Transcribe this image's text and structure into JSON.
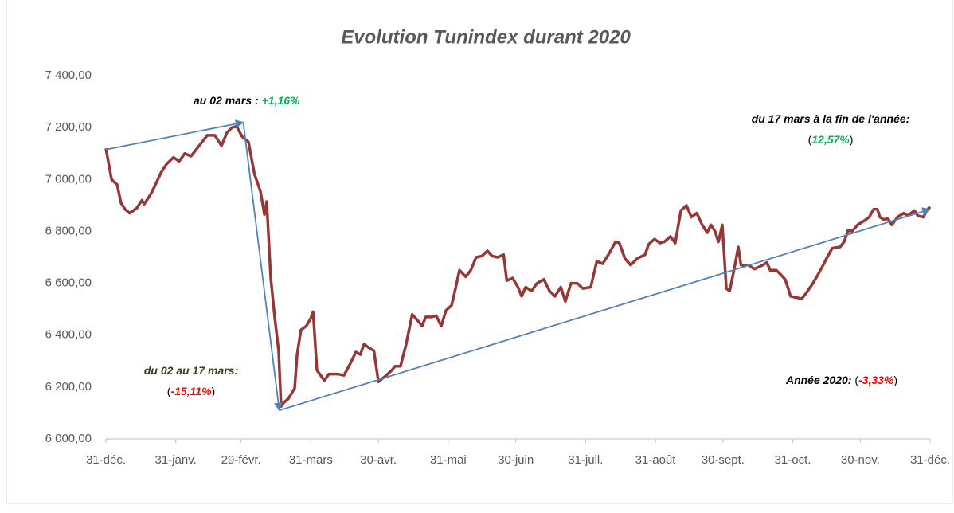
{
  "chart_data": {
    "type": "line",
    "title": "Evolution Tunindex durant 2020",
    "xlim": [
      0,
      366
    ],
    "xticks": [
      {
        "value": 0,
        "label": "31-déc."
      },
      {
        "value": 31,
        "label": "31-janv."
      },
      {
        "value": 60,
        "label": "29-févr."
      },
      {
        "value": 91,
        "label": "31-mars"
      },
      {
        "value": 121,
        "label": "30-avr."
      },
      {
        "value": 152,
        "label": "31-mai"
      },
      {
        "value": 182,
        "label": "30-juin"
      },
      {
        "value": 213,
        "label": "31-juil."
      },
      {
        "value": 244,
        "label": "31-août"
      },
      {
        "value": 274,
        "label": "30-sept."
      },
      {
        "value": 305,
        "label": "31-oct."
      },
      {
        "value": 335,
        "label": "30-nov."
      },
      {
        "value": 366,
        "label": "31-déc."
      }
    ],
    "ylim": [
      6000,
      7400
    ],
    "yticks": [
      {
        "value": 6000,
        "label": "6 000,00"
      },
      {
        "value": 6200,
        "label": "6 200,00"
      },
      {
        "value": 6400,
        "label": "6 400,00"
      },
      {
        "value": 6600,
        "label": "6 600,00"
      },
      {
        "value": 6800,
        "label": "6 800,00"
      },
      {
        "value": 7000,
        "label": "7 000,00"
      },
      {
        "value": 7200,
        "label": "7 200,00"
      },
      {
        "value": 7400,
        "label": "7 400,00"
      }
    ],
    "grid": false,
    "series": [
      {
        "color": "#953735",
        "x": [
          0,
          2.5,
          5,
          6.7,
          8.5,
          10.6,
          13.8,
          16,
          17,
          20,
          22,
          24.4,
          27,
          30,
          32.5,
          35,
          37.8,
          41.4,
          45,
          48.4,
          51.3,
          53.7,
          56,
          58,
          60.5,
          63.3,
          66,
          68.6,
          70.4,
          71.4,
          73.2,
          75,
          76.7,
          77.8,
          79,
          81,
          83.8,
          84.9,
          86.6,
          89,
          91,
          92,
          93.7,
          97,
          99,
          103,
          105.7,
          108.5,
          111,
          113,
          114.6,
          117,
          119,
          121,
          124.5,
          127,
          128.4,
          130.8,
          133.3,
          136,
          138.6,
          140.4,
          142,
          144.6,
          146.7,
          148.9,
          151,
          153.5,
          155,
          157,
          159.8,
          162,
          164.4,
          167,
          169.4,
          171.5,
          174,
          176.6,
          178,
          180.6,
          183,
          184.6,
          186.4,
          189,
          191.4,
          194.5,
          197,
          199.4,
          202,
          204,
          206.5,
          209.3,
          211.8,
          215.3,
          218,
          220.6,
          223.5,
          226.3,
          228,
          230.5,
          233,
          235.9,
          239.4,
          241,
          243.6,
          246,
          248,
          250.7,
          252.8,
          255.3,
          257.8,
          260,
          262.4,
          264.8,
          267,
          268.7,
          270.5,
          272,
          273.7,
          275.5,
          277,
          279,
          280.8,
          282,
          285.4,
          288,
          291.7,
          293.5,
          295,
          297.7,
          299.5,
          301.6,
          303,
          304,
          306.6,
          309,
          310.8,
          313.6,
          316,
          318.2,
          320,
          322.5,
          326,
          327.8,
          329.6,
          331.3,
          333.8,
          336.6,
          339,
          340.9,
          342.6,
          343.7,
          345.5,
          347.2,
          349,
          351.5,
          354.3,
          356,
          359,
          360.6,
          363,
          364.9,
          366
        ],
        "values": [
          7120,
          7000,
          6980,
          6910,
          6885,
          6870,
          6890,
          6920,
          6905,
          6945,
          6980,
          7025,
          7060,
          7085,
          7070,
          7100,
          7090,
          7130,
          7170,
          7170,
          7130,
          7180,
          7200,
          7205,
          7165,
          7145,
          7020,
          6955,
          6865,
          6915,
          6620,
          6465,
          6340,
          6125,
          6140,
          6155,
          6195,
          6325,
          6420,
          6435,
          6465,
          6490,
          6265,
          6225,
          6250,
          6250,
          6245,
          6290,
          6335,
          6325,
          6365,
          6350,
          6340,
          6220,
          6245,
          6265,
          6280,
          6280,
          6365,
          6480,
          6455,
          6435,
          6470,
          6470,
          6475,
          6435,
          6495,
          6515,
          6570,
          6650,
          6625,
          6650,
          6700,
          6705,
          6725,
          6705,
          6700,
          6710,
          6610,
          6620,
          6585,
          6550,
          6585,
          6570,
          6600,
          6615,
          6570,
          6550,
          6585,
          6530,
          6600,
          6600,
          6580,
          6585,
          6685,
          6675,
          6715,
          6760,
          6755,
          6695,
          6670,
          6695,
          6710,
          6750,
          6770,
          6755,
          6760,
          6780,
          6755,
          6880,
          6900,
          6855,
          6870,
          6825,
          6795,
          6825,
          6800,
          6760,
          6825,
          6580,
          6570,
          6655,
          6740,
          6670,
          6670,
          6655,
          6670,
          6680,
          6650,
          6650,
          6635,
          6615,
          6580,
          6550,
          6545,
          6540,
          6560,
          6595,
          6630,
          6665,
          6695,
          6735,
          6740,
          6760,
          6805,
          6800,
          6825,
          6840,
          6855,
          6885,
          6885,
          6855,
          6845,
          6850,
          6825,
          6855,
          6870,
          6860,
          6880,
          6860,
          6855,
          6885,
          6895
        ]
      }
    ],
    "arrows": [
      {
        "color": "#4f81bd",
        "x": [
          0,
          61
        ],
        "values": [
          7115,
          7220
        ]
      },
      {
        "color": "#4f81bd",
        "x": [
          61,
          77
        ],
        "values": [
          7220,
          6110
        ]
      },
      {
        "color": "#4f81bd",
        "x": [
          77,
          366
        ],
        "values": [
          6110,
          6885
        ]
      }
    ],
    "annotations": [
      {
        "lines": [
          [
            {
              "text": "au 02 mars : ",
              "color": "#000000"
            },
            {
              "text": "+1,16%",
              "color": "#00b050"
            }
          ]
        ]
      },
      {
        "lines": [
          [
            {
              "text": "du 02 au 17 mars:",
              "color": "#403a1c"
            }
          ],
          [
            {
              "text": "(",
              "color": "#000000",
              "italic": false
            },
            {
              "text": "-15,11%",
              "color": "#ff0000"
            },
            {
              "text": ")",
              "color": "#000000",
              "italic": false
            }
          ]
        ]
      },
      {
        "lines": [
          [
            {
              "text": "du 17 mars à la fin de l'année:",
              "color": "#000000"
            }
          ],
          [
            {
              "text": "(",
              "color": "#000000",
              "italic": false
            },
            {
              "text": "12,57%",
              "color": "#00b050"
            },
            {
              "text": ")",
              "color": "#000000",
              "italic": false
            }
          ]
        ]
      },
      {
        "lines": [
          [
            {
              "text": "Année 2020: ",
              "color": "#000000"
            },
            {
              "text": "(",
              "color": "#000000",
              "italic": false
            },
            {
              "text": "-3,33%",
              "color": "#ff0000"
            },
            {
              "text": ")",
              "color": "#000000",
              "italic": false
            }
          ]
        ]
      }
    ]
  }
}
